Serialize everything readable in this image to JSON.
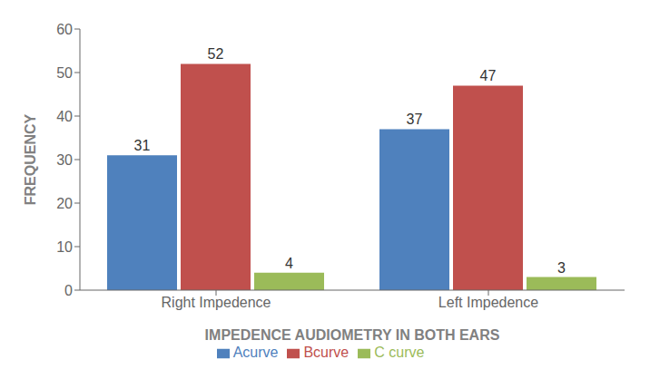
{
  "chart_data": {
    "type": "bar",
    "categories": [
      "Right Impedence",
      "Left Impedence"
    ],
    "series": [
      {
        "name": "Acurve",
        "values": [
          31,
          37
        ],
        "color": "#4F81BD"
      },
      {
        "name": "Bcurve",
        "values": [
          52,
          47
        ],
        "color": "#C0504D"
      },
      {
        "name": "C curve",
        "values": [
          4,
          3
        ],
        "color": "#9BBB59"
      }
    ],
    "xlabel": "IMPEDENCE AUDIOMETRY IN BOTH EARS",
    "ylabel": "FREQUENCY",
    "ylim": [
      0,
      60
    ],
    "yticks": [
      0,
      10,
      20,
      30,
      40,
      50,
      60
    ],
    "grid": false,
    "legend": "bottom",
    "data_labels": true
  }
}
